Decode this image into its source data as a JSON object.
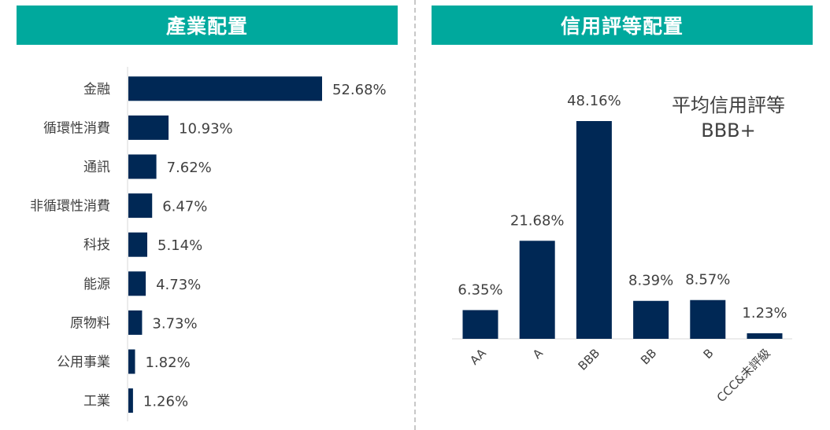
{
  "charts": [
    {
      "header": "產業配置",
      "chart_data": {
        "type": "bar",
        "orientation": "horizontal",
        "categories": [
          "金融",
          "循環性消費",
          "通訊",
          "非循環性消費",
          "科技",
          "能源",
          "原物料",
          "公用事業",
          "工業"
        ],
        "values": [
          52.68,
          10.93,
          7.62,
          6.47,
          5.14,
          4.73,
          3.73,
          1.82,
          1.26
        ],
        "labels": [
          "52.68%",
          "10.93%",
          "7.62%",
          "6.47%",
          "5.14%",
          "4.73%",
          "3.73%",
          "1.82%",
          "1.26%"
        ],
        "bar_color": "#002855",
        "xlim": [
          0,
          52.68
        ],
        "grid": false
      }
    },
    {
      "header": "信用評等配置",
      "annotation": {
        "line1": "平均信用評等",
        "line2": "BBB+"
      },
      "chart_data": {
        "type": "bar",
        "orientation": "vertical",
        "categories": [
          "AA",
          "A",
          "BBB",
          "BB",
          "B",
          "CCC&未評級"
        ],
        "values": [
          6.35,
          21.68,
          48.16,
          8.39,
          8.57,
          1.23
        ],
        "labels": [
          "6.35%",
          "21.68%",
          "48.16%",
          "8.39%",
          "8.57%",
          "1.23%"
        ],
        "bar_color": "#002855",
        "ylim": [
          0,
          48.16
        ],
        "grid": false
      }
    }
  ],
  "theme": {
    "header_color": "#00a99d",
    "bar_color": "#002855"
  }
}
